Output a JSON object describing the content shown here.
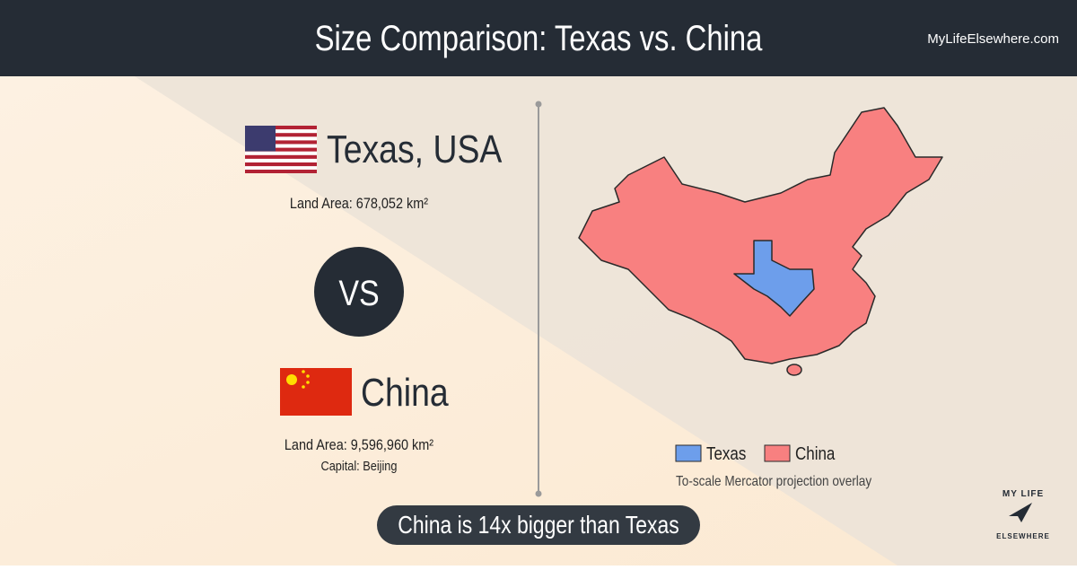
{
  "header": {
    "title": "Size Comparison: Texas vs. China",
    "site": "MyLifeElsewhere.com"
  },
  "left": {
    "first": {
      "name": "Texas, USA",
      "area": "Land Area: 678,052 km²"
    },
    "vs": "VS",
    "second": {
      "name": "China",
      "area": "Land Area: 9,596,960 km²",
      "capital": "Capital: Beijing"
    }
  },
  "map": {
    "legend": [
      "Texas",
      "China"
    ],
    "note": "To-scale Mercator projection overlay"
  },
  "banner": "China is 14x bigger than Texas",
  "logo": {
    "top": "MY LIFE",
    "bottom": "ELSEWHERE"
  }
}
